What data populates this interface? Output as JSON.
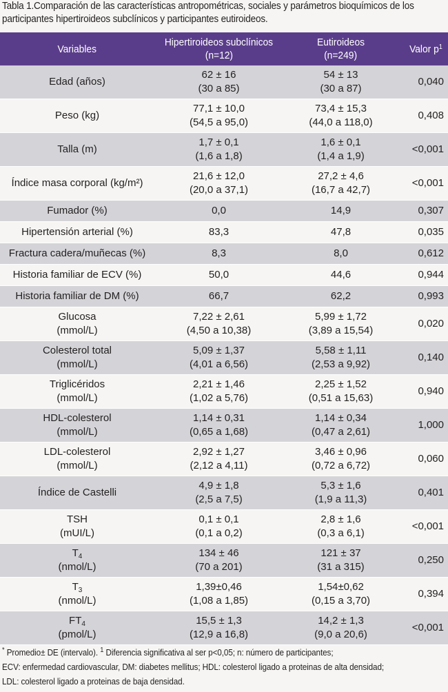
{
  "caption": {
    "label": "Tabla 1.",
    "text": "Comparación de las características antropométricas, sociales y parámetros bioquímicos de los participantes hipertiroideos subclínicos y participantes eutiroideos."
  },
  "table": {
    "headers": {
      "variables": "Variables",
      "hyper_line1": "Hipertiroideos subclínicos",
      "hyper_line2": "(n=12)",
      "eu_line1": "Eutiroideos",
      "eu_line2": "(n=249)",
      "pvalue": "Valor p",
      "pvalue_sup": "1"
    },
    "rows": [
      {
        "label": "Edad (años)",
        "hyper": [
          "62 ± 16",
          "(30 a 85)"
        ],
        "eu": [
          "54 ± 13",
          "(30 a 87)"
        ],
        "p": "0,040"
      },
      {
        "label": "Peso (kg)",
        "hyper": [
          "77,1 ± 10,0",
          "(54,5 a 95,0)"
        ],
        "eu": [
          "73,4 ± 15,3",
          "(44,0 a 118,0)"
        ],
        "p": "0,408"
      },
      {
        "label": "Talla (m)",
        "hyper": [
          "1,7 ± 0,1",
          "(1,6 a 1,8)"
        ],
        "eu": [
          "1,6 ± 0,1",
          "(1,4 a 1,9)"
        ],
        "p": "<0,001"
      },
      {
        "label": "Índice masa corporal (kg/m²)",
        "hyper": [
          "21,6 ± 12,0",
          "(20,0 a 37,1)"
        ],
        "eu": [
          "27,2 ± 4,6",
          "(16,7 a 42,7)"
        ],
        "p": "<0,001"
      },
      {
        "label": "Fumador (%)",
        "hyper": [
          "0,0"
        ],
        "eu": [
          "14,9"
        ],
        "p": "0,307"
      },
      {
        "label": "Hipertensión arterial (%)",
        "hyper": [
          "83,3"
        ],
        "eu": [
          "47,8"
        ],
        "p": "0,035"
      },
      {
        "label": "Fractura cadera/muñecas (%)",
        "hyper": [
          "8,3"
        ],
        "eu": [
          "8,0"
        ],
        "p": "0,612"
      },
      {
        "label": "Historia familiar de ECV  (%)",
        "hyper": [
          "50,0"
        ],
        "eu": [
          "44,6"
        ],
        "p": "0,944"
      },
      {
        "label": "Historia familiar de DM (%)",
        "hyper": [
          "66,7"
        ],
        "eu": [
          "62,2"
        ],
        "p": "0,993"
      },
      {
        "label": "Glucosa",
        "label2": "(mmol/L)",
        "hyper": [
          "7,22 ± 2,61",
          "(4,50 a 10,38)"
        ],
        "eu": [
          "5,99 ± 1,72",
          "(3,89 a 15,54)"
        ],
        "p": "0,020"
      },
      {
        "label": "Colesterol total",
        "label2": "(mmol/L)",
        "hyper": [
          "5,09 ± 1,37",
          "(4,01 a 6,56)"
        ],
        "eu": [
          "5,58 ± 1,11",
          "(2,53 a 9,92)"
        ],
        "p": "0,140"
      },
      {
        "label": "Triglicéridos",
        "label2": "(mmol/L)",
        "hyper": [
          "2,21 ± 1,46",
          "(1,02 a 5,76)"
        ],
        "eu": [
          "2,25 ± 1,52",
          "(0,51 a 15,63)"
        ],
        "p": "0,940"
      },
      {
        "label": "HDL-colesterol",
        "label2": "(mmol/L)",
        "hyper": [
          "1,14 ± 0,31",
          "(0,65 a 1,68)"
        ],
        "eu": [
          "1,14 ± 0,34",
          "(0,47 a 2,61)"
        ],
        "p": "1,000"
      },
      {
        "label": "LDL-colesterol",
        "label2": "(mmol/L)",
        "hyper": [
          "2,92 ± 1,27",
          "(2,12 a 4,11)"
        ],
        "eu": [
          "3,46 ± 0,96",
          "(0,72 a 6,72)"
        ],
        "p": "0,060"
      },
      {
        "label": "Índice de Castelli",
        "hyper": [
          "4,9 ± 1,8",
          "(2,5 a 7,5)"
        ],
        "eu": [
          "5,3 ± 1,6",
          "(1,9 a 11,3)"
        ],
        "p": "0,401"
      },
      {
        "label": "TSH",
        "label2": "(mUI/L)",
        "hyper": [
          "0,1 ± 0,1",
          "(0,1 a 0,2)"
        ],
        "eu": [
          "2,8 ± 1,6",
          "(0,3 a 6,1)"
        ],
        "p": "<0,001"
      },
      {
        "label": "T",
        "label_sub": "4",
        "label2": "(nmol/L)",
        "hyper": [
          "134 ± 46",
          "(70 a 201)"
        ],
        "eu": [
          "121 ± 37",
          "(31 a 315)"
        ],
        "p": "0,250"
      },
      {
        "label": "T",
        "label_sub": "3",
        "label2": "(nmol/L)",
        "hyper": [
          "1,39±0,46",
          "(1,08 a 1,85)"
        ],
        "eu": [
          "1,54±0,62",
          "(0,15 a 3,70)"
        ],
        "p": "0,394"
      },
      {
        "label": "FT",
        "label_sub": "4",
        "label2": "(pmol/L)",
        "hyper": [
          "15,5 ± 1,3",
          "(12,9 a 16,8)"
        ],
        "eu": [
          "14,2 ± 1,3",
          "(9,0 a 20,6)"
        ],
        "p": "<0,001"
      }
    ]
  },
  "footnote": {
    "line1_star": "*",
    "line1_a": " Promedio± DE (intervalo).",
    "line1_sup": "1",
    "line1_b": " Diferencia significativa al ser p<0,05; n: número de participantes;",
    "line2": "ECV: enfermedad cardiovascular, DM: diabetes mellitus; HDL: colesterol ligado a proteinas de alta densidad;",
    "line3": "LDL: colesterol ligado a proteinas de baja densidad."
  }
}
